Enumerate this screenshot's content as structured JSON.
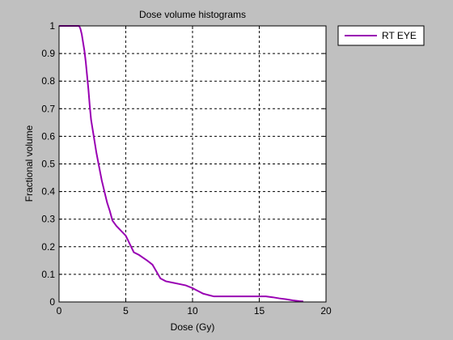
{
  "chart_data": {
    "type": "line",
    "title": "Dose volume histograms",
    "xlabel": "Dose (Gy)",
    "ylabel": "Fractional volume",
    "xlim": [
      0,
      20
    ],
    "ylim": [
      0,
      1
    ],
    "xticks": [
      0,
      5,
      10,
      15,
      20
    ],
    "yticks": [
      0,
      0.1,
      0.2,
      0.3,
      0.4,
      0.5,
      0.6,
      0.7,
      0.8,
      0.9,
      1
    ],
    "grid": true,
    "legend_position": "outside-top-right",
    "series": [
      {
        "name": "RT EYE",
        "color": "#9900b3",
        "x": [
          0,
          1.5,
          1.6,
          1.7,
          1.8,
          1.9,
          2.0,
          2.1,
          2.2,
          2.3,
          2.4,
          2.5,
          2.6,
          2.8,
          3.0,
          3.2,
          3.4,
          3.6,
          3.8,
          4.0,
          4.3,
          4.6,
          5.0,
          5.3,
          5.6,
          6.0,
          6.3,
          6.6,
          7.0,
          7.3,
          7.6,
          8.0,
          8.5,
          9.0,
          9.5,
          10.0,
          10.4,
          10.8,
          11.2,
          11.6,
          12.0,
          13.0,
          14.0,
          15.0,
          15.5,
          16.0,
          16.5,
          17.0,
          17.5,
          18.0,
          18.3
        ],
        "values": [
          1,
          1,
          0.99,
          0.97,
          0.94,
          0.91,
          0.87,
          0.82,
          0.77,
          0.71,
          0.66,
          0.63,
          0.6,
          0.54,
          0.49,
          0.44,
          0.4,
          0.36,
          0.33,
          0.295,
          0.275,
          0.26,
          0.24,
          0.21,
          0.18,
          0.17,
          0.16,
          0.15,
          0.135,
          0.11,
          0.085,
          0.075,
          0.07,
          0.065,
          0.06,
          0.05,
          0.04,
          0.03,
          0.025,
          0.02,
          0.02,
          0.02,
          0.02,
          0.02,
          0.02,
          0.017,
          0.013,
          0.01,
          0.006,
          0.003,
          0.002
        ]
      }
    ]
  }
}
